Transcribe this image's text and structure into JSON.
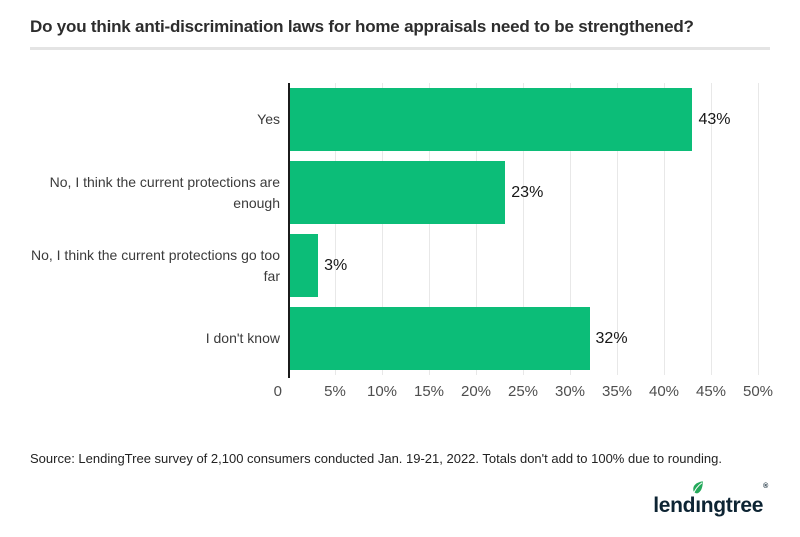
{
  "header": {
    "title": "Do you think anti-discrimination laws for home appraisals need to be strengthened?"
  },
  "chart_data": {
    "type": "bar",
    "orientation": "horizontal",
    "title": "Do you think anti-discrimination laws for home appraisals need to be strengthened?",
    "categories": [
      "Yes",
      "No, I think the current protections are enough",
      "No, I think the current protections go too far",
      "I don't know"
    ],
    "values": [
      43,
      23,
      3,
      32
    ],
    "value_labels": [
      "43%",
      "23%",
      "3%",
      "32%"
    ],
    "xlim": [
      0,
      50
    ],
    "x_ticks": [
      "0",
      "5%",
      "10%",
      "15%",
      "20%",
      "25%",
      "30%",
      "35%",
      "40%",
      "45%",
      "50%"
    ],
    "xlabel": "",
    "ylabel": "",
    "grid": "vertical",
    "legend": "none",
    "bar_color": "#0cbd78"
  },
  "footer": {
    "source": "Source: LendingTree survey of 2,100 consumers conducted Jan. 19-21, 2022. Totals don't add to 100% due to rounding.",
    "logo_part1": "lend",
    "logo_i": "ı",
    "logo_part2": "ngtree",
    "logo_registered": "®"
  },
  "colors": {
    "bar_green": "#0cbd78",
    "leaf_green": "#25a95b",
    "logo_navy": "#0d2433",
    "axis_line": "#1b1b1b",
    "gridline": "#e8e8e8",
    "title_text": "#2d2d2d",
    "divider": "#e4e4e4"
  }
}
